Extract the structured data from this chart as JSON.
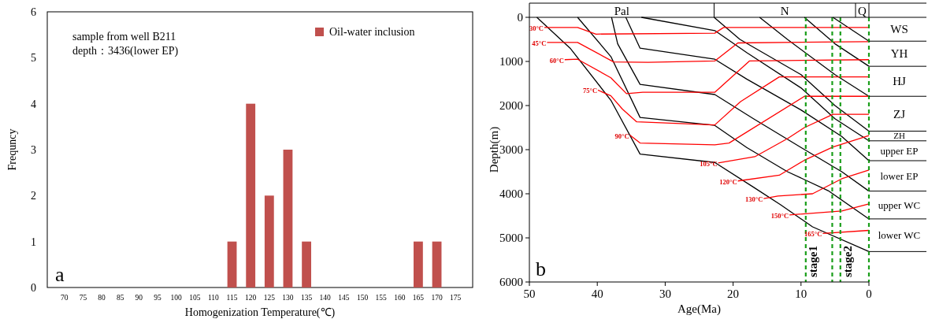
{
  "chart_data": [
    {
      "type": "bar",
      "xlabel": "Homogenization Temperature(℃)",
      "ylabel": "Frequncy",
      "categories": [
        "70",
        "75",
        "80",
        "85",
        "90",
        "95",
        "100",
        "105",
        "110",
        "115",
        "120",
        "125",
        "130",
        "135",
        "140",
        "145",
        "150",
        "155",
        "160",
        "165",
        "170",
        "175"
      ],
      "series": [
        {
          "name": "Oil-water inclusion",
          "color": "#c0504d",
          "values": [
            0,
            0,
            0,
            0,
            0,
            0,
            0,
            0,
            0,
            1,
            4,
            2,
            3,
            1,
            0,
            0,
            0,
            0,
            0,
            1,
            1,
            0
          ]
        }
      ],
      "ylim": [
        0,
        6
      ],
      "yticks": [
        0,
        1,
        2,
        3,
        4,
        5,
        6
      ],
      "legend": "top right",
      "grid": false,
      "annotations": [
        "sample from well B211",
        "depth：3436(lower EP)",
        "a"
      ]
    },
    {
      "type": "line",
      "xlabel": "Age(Ma)",
      "ylabel": "Depth(m)",
      "xlim": [
        50,
        0
      ],
      "xticks": [
        50,
        40,
        30,
        20,
        10,
        0
      ],
      "ylim": [
        6000,
        0
      ],
      "yticks": [
        0,
        1000,
        2000,
        3000,
        4000,
        5000,
        6000
      ],
      "grid": false,
      "marker": "none",
      "line_style": "solid",
      "series": [
        {
          "color": "#000000",
          "x": [
            48.9,
            44,
            38,
            33.7,
            22.7,
            17,
            13,
            8.3,
            0
          ],
          "values": [
            0,
            700,
            1880,
            3100,
            3290,
            3850,
            4250,
            4750,
            5310
          ]
        },
        {
          "color": "#000000",
          "x": [
            42.9,
            38,
            33.7,
            22.7,
            18,
            12,
            6,
            0
          ],
          "values": [
            0,
            890,
            2270,
            2450,
            2950,
            3500,
            3930,
            4570
          ]
        },
        {
          "color": "#000000",
          "x": [
            37.9,
            37,
            33.7,
            22.7,
            17,
            10,
            4,
            0
          ],
          "values": [
            0,
            600,
            1520,
            1750,
            2300,
            2950,
            3500,
            3940
          ]
        },
        {
          "color": "#000000",
          "x": [
            35.8,
            33.7,
            22.7,
            18,
            10,
            4,
            0
          ],
          "values": [
            0,
            700,
            950,
            1400,
            2100,
            2700,
            3250
          ]
        },
        {
          "color": "#000000",
          "x": [
            33.5,
            22.7,
            18,
            10,
            5,
            0
          ],
          "values": [
            0,
            300,
            800,
            1600,
            2300,
            2800
          ]
        },
        {
          "color": "#000000",
          "x": [
            22.8,
            19,
            10,
            5,
            0
          ],
          "values": [
            0,
            500,
            1300,
            2000,
            2580
          ]
        },
        {
          "color": "#000000",
          "x": [
            16.1,
            12,
            5,
            0
          ],
          "values": [
            0,
            500,
            1300,
            1790
          ]
        },
        {
          "color": "#000000",
          "x": [
            9.5,
            5,
            0
          ],
          "values": [
            0,
            600,
            1110
          ]
        },
        {
          "color": "#000000",
          "x": [
            5.3,
            0
          ],
          "values": [
            0,
            540
          ]
        },
        {
          "color": "#ff0000",
          "x": [
            47.8,
            42.9,
            40.2,
            22.7,
            21.4,
            0
          ],
          "values": [
            230,
            230,
            380,
            360,
            230,
            230
          ]
        },
        {
          "color": "#ff0000",
          "x": [
            47.4,
            42.9,
            37.6,
            32.5,
            22.7,
            19.3,
            0
          ],
          "values": [
            570,
            570,
            1010,
            1020,
            990,
            580,
            550
          ]
        },
        {
          "color": "#ff0000",
          "x": [
            44.8,
            42.9,
            38,
            35.7,
            33.3,
            22.7,
            17.6,
            0
          ],
          "values": [
            960,
            950,
            1370,
            1730,
            1700,
            1700,
            990,
            960
          ]
        },
        {
          "color": "#ff0000",
          "x": [
            39.9,
            38,
            36.3,
            34.2,
            22.7,
            18.9,
            13.2,
            0
          ],
          "values": [
            1650,
            1780,
            2080,
            2370,
            2440,
            1910,
            1350,
            1350
          ]
        },
        {
          "color": "#ff0000",
          "x": [
            35.2,
            33.7,
            22.7,
            20.6,
            9.5,
            0
          ],
          "values": [
            2670,
            2850,
            2890,
            2850,
            1790,
            1790
          ]
        },
        {
          "color": "#ff0000",
          "x": [
            22.2,
            16.8,
            12,
            9.5,
            5.3,
            0
          ],
          "values": [
            3300,
            3160,
            2750,
            2500,
            2200,
            2200
          ]
        },
        {
          "color": "#ff0000",
          "x": [
            19.3,
            13.2,
            9.5,
            5.3,
            0
          ],
          "values": [
            3710,
            3580,
            3240,
            2940,
            2680
          ]
        },
        {
          "color": "#ff0000",
          "x": [
            15.5,
            13.4,
            8.3,
            4,
            0
          ],
          "values": [
            4110,
            4050,
            4000,
            3660,
            3460
          ]
        },
        {
          "color": "#ff0000",
          "x": [
            11.7,
            4,
            0
          ],
          "values": [
            4480,
            4390,
            4230
          ]
        },
        {
          "color": "#ff0000",
          "x": [
            6.8,
            0
          ],
          "values": [
            4900,
            4830
          ]
        }
      ],
      "ref_lines": [
        {
          "axis": "x",
          "value": 9.3,
          "label": "stage1",
          "color": "#1a9e1a",
          "line_style": "dashed"
        },
        {
          "axis": "x",
          "value": 5.4,
          "label": null,
          "color": "#1a9e1a",
          "line_style": "dashed"
        },
        {
          "axis": "x",
          "value": 4.2,
          "label": "stage2",
          "color": "#1a9e1a",
          "line_style": "dashed"
        },
        {
          "axis": "x",
          "value": 0,
          "label": null,
          "color": "#1a9e1a",
          "line_style": "dashed"
        }
      ],
      "annotations": [
        "Pal",
        "N",
        "Q",
        {
          "text": "30°C",
          "x": 47.8,
          "y": 230
        },
        {
          "text": "45°C",
          "x": 47.4,
          "y": 570
        },
        {
          "text": "60°C",
          "x": 44.8,
          "y": 960
        },
        {
          "text": "75°C",
          "x": 39.9,
          "y": 1650
        },
        {
          "text": "90°C",
          "x": 35.2,
          "y": 2670
        },
        {
          "text": "105°C",
          "x": 22.2,
          "y": 3300
        },
        {
          "text": "120°C",
          "x": 19.3,
          "y": 3710
        },
        {
          "text": "130°C",
          "x": 15.5,
          "y": 4110
        },
        {
          "text": "150°C",
          "x": 11.7,
          "y": 4480
        },
        {
          "text": "165°C",
          "x": 6.8,
          "y": 4900
        },
        "WS",
        "YH",
        "HJ",
        "ZJ",
        "ZH",
        "upper EP",
        "lower EP",
        "upper WC",
        "lower WC",
        "b"
      ]
    }
  ]
}
